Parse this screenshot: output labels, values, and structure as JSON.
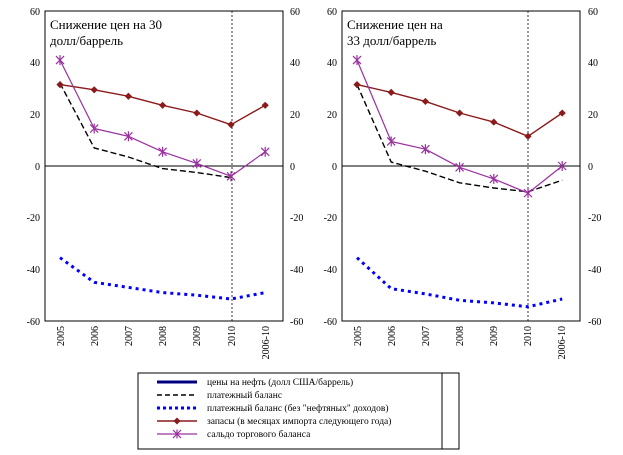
{
  "chart_data": [
    {
      "type": "line",
      "title_lines": [
        "Снижение цен на 30",
        "долл/баррель"
      ],
      "categories": [
        "2005",
        "2006",
        "2007",
        "2008",
        "2009",
        "2010",
        "2006-10"
      ],
      "ylim": [
        -60,
        60
      ],
      "y_ticks": [
        "60",
        "40",
        "20",
        "0",
        "-20",
        "-40",
        "-60"
      ],
      "y_ticks_right": [
        "60",
        "40",
        "20",
        "0",
        "-20",
        "-40",
        "-60"
      ],
      "vline_at": "2010",
      "series": [
        {
          "name": "платежный баланс",
          "values": [
            32,
            7,
            3.5,
            -1,
            -2.5,
            -4.5,
            null
          ]
        },
        {
          "name": "платежный баланс (без \"нефтяных\" доходов)",
          "values": [
            -35.5,
            -45,
            -47,
            -49,
            -50,
            -51.5,
            -49
          ]
        },
        {
          "name": "запасы (в месяцах импорта следующего года)",
          "values": [
            31.5,
            29.5,
            27,
            23.5,
            20.5,
            16,
            23.5
          ]
        },
        {
          "name": "сальдо торгового баланса",
          "values": [
            41,
            14.5,
            11.5,
            5.5,
            1,
            -4,
            5.5
          ]
        }
      ]
    },
    {
      "type": "line",
      "title_lines": [
        "Снижение цен на",
        "33 долл/баррель"
      ],
      "categories": [
        "2005",
        "2006",
        "2007",
        "2008",
        "2009",
        "2010",
        "2006-10"
      ],
      "ylim": [
        -60,
        60
      ],
      "y_ticks": [
        "60",
        "40",
        "20",
        "0",
        "-20",
        "-40",
        "-60"
      ],
      "y_ticks_right": [
        "60",
        "40",
        "20",
        "0",
        "-20",
        "-40",
        "-60"
      ],
      "vline_at": "2010",
      "series": [
        {
          "name": "платежный баланс",
          "values": [
            31.5,
            1.5,
            -2,
            -6.5,
            -8.5,
            -10,
            -5.5
          ]
        },
        {
          "name": "платежный баланс (без \"нефтяных\" доходов)",
          "values": [
            -35.5,
            -47.5,
            -49.5,
            -52,
            -53,
            -54.5,
            -51.5
          ]
        },
        {
          "name": "запасы (в месяцах импорта следующего года)",
          "values": [
            31.5,
            28.5,
            25,
            20.5,
            17,
            11.5,
            20.5
          ]
        },
        {
          "name": "сальдо торгового баланса",
          "values": [
            41,
            9.5,
            6.5,
            -0.5,
            -5,
            -10.5,
            0
          ]
        }
      ]
    }
  ],
  "legend": {
    "items": [
      {
        "label": "цены на нефть (долл США/баррель)",
        "color": "#000080",
        "style": "solid-thick"
      },
      {
        "label": "платежный баланс",
        "color": "#000000",
        "style": "dashed"
      },
      {
        "label": "платежный баланс (без \"нефтяных\" доходов)",
        "color": "#0000ff",
        "style": "dotted-thick"
      },
      {
        "label": "запасы (в месяцах импорта следующего года)",
        "color": "#8b1a1a",
        "style": "line-diamond"
      },
      {
        "label": "сальдо торгового баланса",
        "color": "#800080",
        "style": "line-star"
      }
    ]
  },
  "colors": {
    "current_account": "#000000",
    "non_oil_balance": "#0000ff",
    "reserves": "#8b1a1a",
    "trade_balance": "#9b30a0",
    "oil_price": "#000080"
  }
}
